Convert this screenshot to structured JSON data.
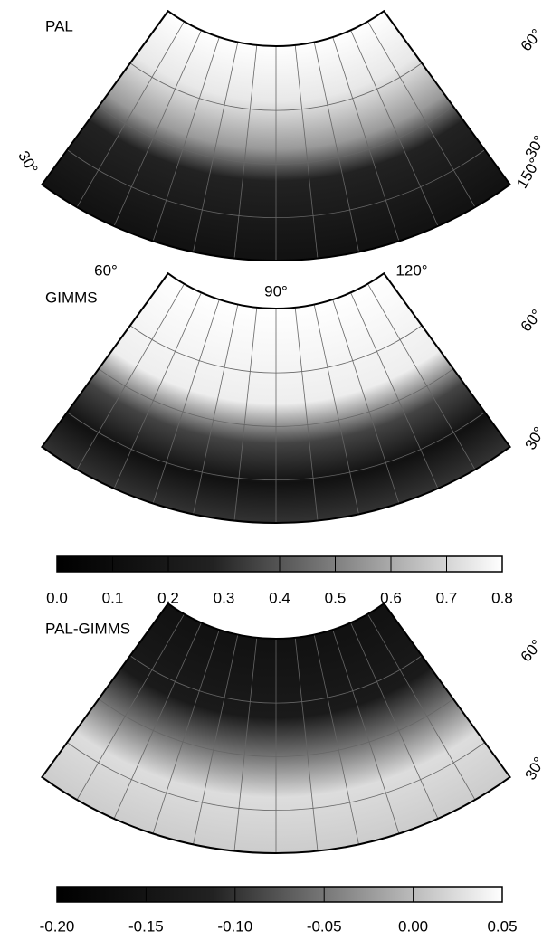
{
  "panels": [
    {
      "title": "PAL",
      "labels": [
        "60°",
        "30°",
        "30°",
        "150°",
        "60°",
        "120°"
      ]
    },
    {
      "title": "GIMMS",
      "labels": [
        "90°",
        "60°",
        "30°"
      ]
    },
    {
      "title": "PAL-GIMMS",
      "labels": [
        "60°",
        "30°"
      ]
    }
  ],
  "colorbars": [
    {
      "lim": [
        0,
        0.8
      ],
      "ticks": [
        {
          "value": 0,
          "label": "0.0"
        },
        0.1,
        0.2,
        0.3,
        0.4,
        0.5,
        0.6,
        0.7,
        0.8
      ]
    },
    {
      "lim": [
        -0.2,
        0.05
      ],
      "ticks": [
        {
          "value": -0.2,
          "label": "-0.20"
        },
        -0.15,
        {
          "value": -0.1,
          "label": "-0.10"
        },
        -0.05,
        {
          "value": 0,
          "label": "0.00"
        },
        0.05
      ]
    }
  ]
}
